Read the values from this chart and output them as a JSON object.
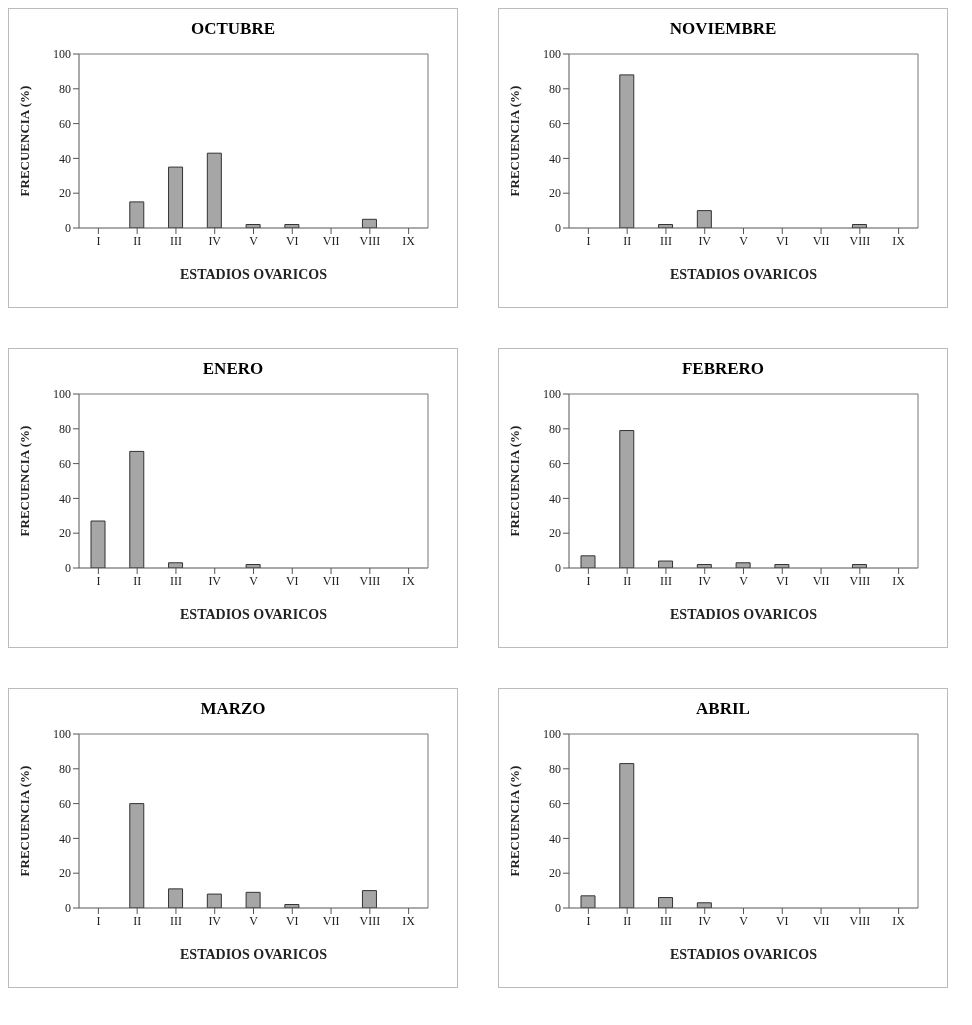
{
  "chart_data": [
    {
      "type": "bar",
      "title": "OCTUBRE",
      "xlabel": "ESTADIOS OVARICOS",
      "ylabel": "FRECUENCIA (%)",
      "categories": [
        "I",
        "II",
        "III",
        "IV",
        "V",
        "VI",
        "VII",
        "VIII",
        "IX"
      ],
      "values": [
        0,
        15,
        35,
        43,
        2,
        2,
        0,
        5,
        0
      ],
      "color": "#a6a6a6",
      "ylim": [
        0,
        100
      ],
      "yticks": [
        0,
        20,
        40,
        60,
        80,
        100
      ],
      "grid": false
    },
    {
      "type": "bar",
      "title": "NOVIEMBRE",
      "xlabel": "ESTADIOS OVARICOS",
      "ylabel": "FRECUENCIA (%)",
      "categories": [
        "I",
        "II",
        "III",
        "IV",
        "V",
        "VI",
        "VII",
        "VIII",
        "IX"
      ],
      "values": [
        0,
        88,
        2,
        10,
        0,
        0,
        0,
        2,
        0
      ],
      "color": "#a6a6a6",
      "ylim": [
        0,
        100
      ],
      "yticks": [
        0,
        20,
        40,
        60,
        80,
        100
      ],
      "grid": false
    },
    {
      "type": "bar",
      "title": "ENERO",
      "xlabel": "ESTADIOS OVARICOS",
      "ylabel": "FRECUENCIA (%)",
      "categories": [
        "I",
        "II",
        "III",
        "IV",
        "V",
        "VI",
        "VII",
        "VIII",
        "IX"
      ],
      "values": [
        27,
        67,
        3,
        0,
        2,
        0,
        0,
        0,
        0
      ],
      "color": "#a6a6a6",
      "ylim": [
        0,
        100
      ],
      "yticks": [
        0,
        20,
        40,
        60,
        80,
        100
      ],
      "grid": false
    },
    {
      "type": "bar",
      "title": "FEBRERO",
      "xlabel": "ESTADIOS OVARICOS",
      "ylabel": "FRECUENCIA (%)",
      "categories": [
        "I",
        "II",
        "III",
        "IV",
        "V",
        "VI",
        "VII",
        "VIII",
        "IX"
      ],
      "values": [
        7,
        79,
        4,
        2,
        3,
        2,
        0,
        2,
        0
      ],
      "color": "#a6a6a6",
      "ylim": [
        0,
        100
      ],
      "yticks": [
        0,
        20,
        40,
        60,
        80,
        100
      ],
      "grid": false
    },
    {
      "type": "bar",
      "title": "MARZO",
      "xlabel": "ESTADIOS OVARICOS",
      "ylabel": "FRECUENCIA (%)",
      "categories": [
        "I",
        "II",
        "III",
        "IV",
        "V",
        "VI",
        "VII",
        "VIII",
        "IX"
      ],
      "values": [
        0,
        60,
        11,
        8,
        9,
        2,
        0,
        10,
        0
      ],
      "color": "#a6a6a6",
      "ylim": [
        0,
        100
      ],
      "yticks": [
        0,
        20,
        40,
        60,
        80,
        100
      ],
      "grid": false
    },
    {
      "type": "bar",
      "title": "ABRIL",
      "xlabel": "ESTADIOS OVARICOS",
      "ylabel": "FRECUENCIA (%)",
      "categories": [
        "I",
        "II",
        "III",
        "IV",
        "V",
        "VI",
        "VII",
        "VIII",
        "IX"
      ],
      "values": [
        7,
        83,
        6,
        3,
        0,
        0,
        0,
        0,
        0
      ],
      "color": "#a6a6a6",
      "ylim": [
        0,
        100
      ],
      "yticks": [
        0,
        20,
        40,
        60,
        80,
        100
      ],
      "grid": false
    }
  ]
}
